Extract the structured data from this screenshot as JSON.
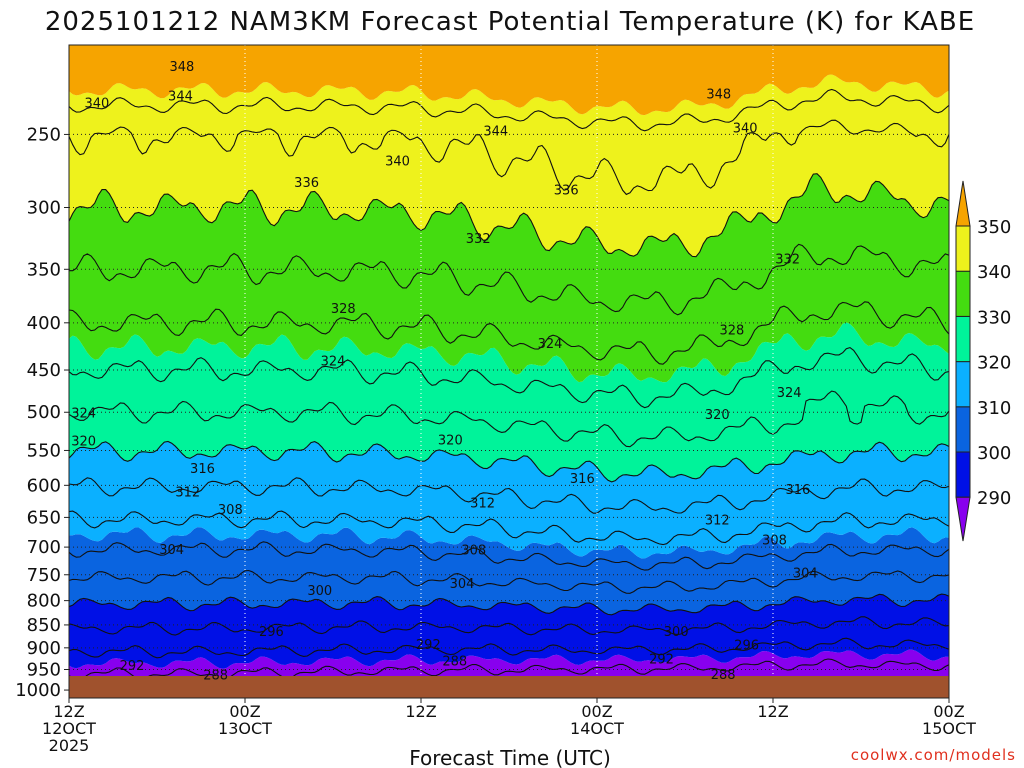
{
  "chart_data": {
    "type": "contour",
    "title": "2025101212 NAM3KM Forecast Potential Temperature (K) for KABE",
    "xlabel": "Forecast Time (UTC)",
    "credit": "coolwx.com/models",
    "x_ticks": [
      {
        "hours": 0,
        "lines": [
          "12Z",
          "12OCT",
          "2025"
        ]
      },
      {
        "hours": 12,
        "lines": [
          "00Z",
          "13OCT"
        ]
      },
      {
        "hours": 24,
        "lines": [
          "12Z"
        ]
      },
      {
        "hours": 36,
        "lines": [
          "00Z",
          "14OCT"
        ]
      },
      {
        "hours": 48,
        "lines": [
          "12Z"
        ]
      },
      {
        "hours": 60,
        "lines": [
          "00Z",
          "15OCT"
        ]
      }
    ],
    "xlim": [
      0,
      60
    ],
    "y_ticks": [
      250,
      300,
      350,
      400,
      450,
      500,
      550,
      600,
      650,
      700,
      750,
      800,
      850,
      900,
      950,
      1000
    ],
    "ylim_hpa": [
      200,
      1020
    ],
    "y_scale": "log",
    "colorbar": {
      "labels": [
        290,
        300,
        310,
        320,
        330,
        340,
        350
      ],
      "bins": [
        {
          "lo": 280,
          "hi": 290,
          "color": "#8800ee"
        },
        {
          "lo": 290,
          "hi": 300,
          "color": "#0010e6"
        },
        {
          "lo": 300,
          "hi": 310,
          "color": "#0a64e0"
        },
        {
          "lo": 310,
          "hi": 320,
          "color": "#0bb0ff"
        },
        {
          "lo": 320,
          "hi": 330,
          "color": "#00f39a"
        },
        {
          "lo": 330,
          "hi": 340,
          "color": "#44dc10"
        },
        {
          "lo": 340,
          "hi": 350,
          "color": "#eef21c"
        },
        {
          "lo": 350,
          "hi": 360,
          "color": "#f6a400"
        }
      ]
    },
    "ground_color": "#a0522d",
    "isentropes_K": [
      288,
      292,
      296,
      300,
      304,
      308,
      312,
      316,
      320,
      324,
      328,
      332,
      336,
      340,
      344,
      348
    ],
    "contour_labels": [
      {
        "v": "348",
        "h": 7.7,
        "p": 211
      },
      {
        "v": "348",
        "h": 44.3,
        "p": 226
      },
      {
        "v": "344",
        "h": 7.6,
        "p": 227
      },
      {
        "v": "344",
        "h": 29.1,
        "p": 248
      },
      {
        "v": "340",
        "h": 1.9,
        "p": 231
      },
      {
        "v": "340",
        "h": 22.4,
        "p": 267
      },
      {
        "v": "340",
        "h": 46.1,
        "p": 246
      },
      {
        "v": "336",
        "h": 16.2,
        "p": 282
      },
      {
        "v": "336",
        "h": 33.9,
        "p": 287
      },
      {
        "v": "332",
        "h": 27.9,
        "p": 324
      },
      {
        "v": "332",
        "h": 49.0,
        "p": 341
      },
      {
        "v": "328",
        "h": 18.7,
        "p": 386
      },
      {
        "v": "328",
        "h": 45.2,
        "p": 407
      },
      {
        "v": "324",
        "h": 18.0,
        "p": 440
      },
      {
        "v": "324",
        "h": 32.8,
        "p": 421
      },
      {
        "v": "324",
        "h": 49.1,
        "p": 476
      },
      {
        "v": "324",
        "h": 1.0,
        "p": 501
      },
      {
        "v": "320",
        "h": 1.0,
        "p": 537
      },
      {
        "v": "320",
        "h": 26.0,
        "p": 536
      },
      {
        "v": "320",
        "h": 44.2,
        "p": 503
      },
      {
        "v": "316",
        "h": 9.1,
        "p": 575
      },
      {
        "v": "316",
        "h": 35.0,
        "p": 590
      },
      {
        "v": "316",
        "h": 49.7,
        "p": 606
      },
      {
        "v": "312",
        "h": 8.1,
        "p": 610
      },
      {
        "v": "312",
        "h": 28.2,
        "p": 627
      },
      {
        "v": "312",
        "h": 44.2,
        "p": 654
      },
      {
        "v": "308",
        "h": 11.0,
        "p": 637
      },
      {
        "v": "308",
        "h": 27.6,
        "p": 705
      },
      {
        "v": "308",
        "h": 48.1,
        "p": 688
      },
      {
        "v": "304",
        "h": 7.0,
        "p": 704
      },
      {
        "v": "304",
        "h": 26.8,
        "p": 767
      },
      {
        "v": "304",
        "h": 50.2,
        "p": 747
      },
      {
        "v": "300",
        "h": 17.1,
        "p": 780
      },
      {
        "v": "300",
        "h": 41.4,
        "p": 864
      },
      {
        "v": "296",
        "h": 13.8,
        "p": 864
      },
      {
        "v": "296",
        "h": 46.2,
        "p": 894
      },
      {
        "v": "292",
        "h": 4.3,
        "p": 940
      },
      {
        "v": "292",
        "h": 24.5,
        "p": 893
      },
      {
        "v": "292",
        "h": 40.4,
        "p": 926
      },
      {
        "v": "288",
        "h": 10.0,
        "p": 963
      },
      {
        "v": "288",
        "h": 26.3,
        "p": 930
      },
      {
        "v": "288",
        "h": 44.6,
        "p": 962
      }
    ]
  }
}
